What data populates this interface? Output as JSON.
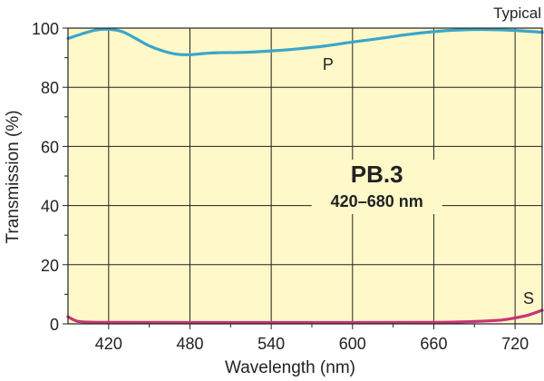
{
  "chart_data": {
    "type": "line",
    "corner_label": "Typical",
    "xlabel": "Wavelength (nm)",
    "ylabel": "Transmission (%)",
    "xlim": [
      390,
      740
    ],
    "ylim": [
      0,
      100
    ],
    "x_ticks": [
      420,
      480,
      540,
      600,
      660,
      720
    ],
    "y_ticks": [
      0,
      20,
      40,
      60,
      80,
      100
    ],
    "grid": true,
    "plot_background": "#fff8c8",
    "annotation_title": "PB.3",
    "annotation_subtitle": "420–680 nm",
    "series": [
      {
        "name": "P",
        "color": "#3aa6c8",
        "x": [
          390,
          400,
          410,
          420,
          430,
          440,
          450,
          460,
          470,
          480,
          490,
          500,
          520,
          540,
          560,
          580,
          600,
          620,
          640,
          660,
          680,
          700,
          720,
          740
        ],
        "y": [
          96.5,
          98,
          99.3,
          99.6,
          98.8,
          96.5,
          94,
          92.3,
          91.2,
          91,
          91.4,
          91.7,
          91.8,
          92.3,
          93,
          94,
          95.3,
          96.5,
          97.8,
          98.8,
          99.4,
          99.5,
          99.2,
          98.6
        ]
      },
      {
        "name": "S",
        "color": "#c8347a",
        "x": [
          390,
          395,
          400,
          420,
          500,
          600,
          660,
          690,
          710,
          720,
          730,
          740
        ],
        "y": [
          2.4,
          1.2,
          0.7,
          0.5,
          0.4,
          0.4,
          0.5,
          0.8,
          1.3,
          2,
          3,
          4.6
        ]
      }
    ]
  }
}
